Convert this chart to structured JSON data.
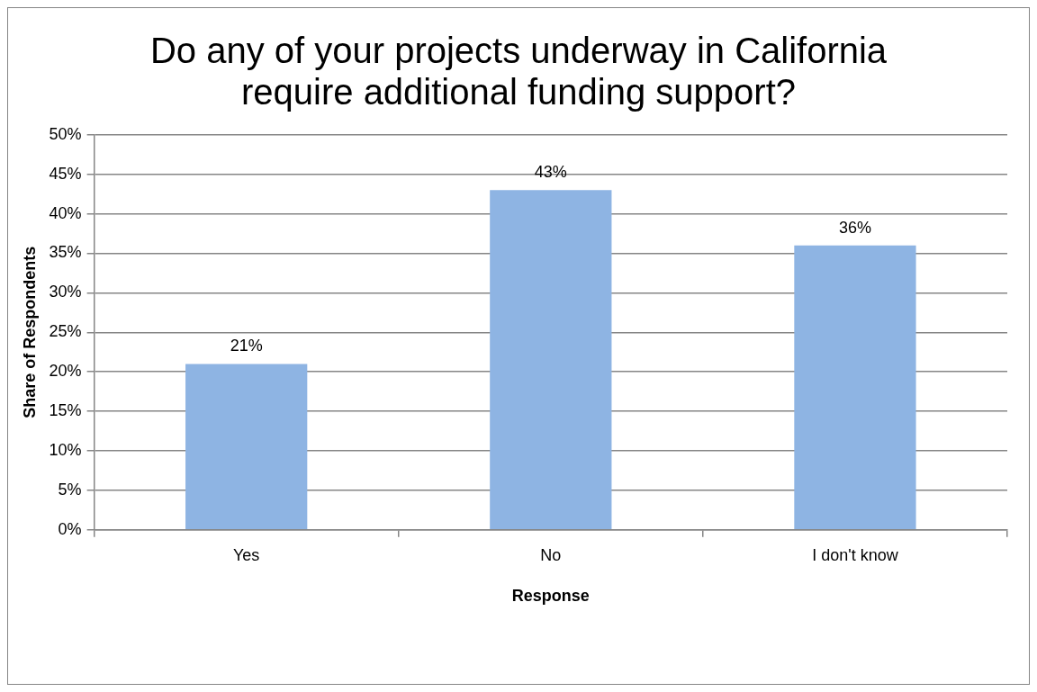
{
  "chart_data": {
    "type": "bar",
    "title": "Do any of your projects underway in California require additional funding support?",
    "xlabel": "Response",
    "ylabel": "Share of Respondents",
    "categories": [
      "Yes",
      "No",
      "I don't know"
    ],
    "values": [
      21,
      43,
      36
    ],
    "color": "#8eb4e3",
    "value_labels": [
      "21%",
      "43%",
      "36%"
    ],
    "ylim": [
      0,
      50
    ],
    "yticks": [
      {
        "value": 0,
        "label": "0%"
      },
      {
        "value": 5,
        "label": "5%"
      },
      {
        "value": 10,
        "label": "10%"
      },
      {
        "value": 15,
        "label": "15%"
      },
      {
        "value": 20,
        "label": "20%"
      },
      {
        "value": 25,
        "label": "25%"
      },
      {
        "value": 30,
        "label": "30%"
      },
      {
        "value": 35,
        "label": "35%"
      },
      {
        "value": 40,
        "label": "40%"
      },
      {
        "value": 45,
        "label": "45%"
      },
      {
        "value": 50,
        "label": "50%"
      }
    ],
    "grid": "y",
    "legend": false
  }
}
